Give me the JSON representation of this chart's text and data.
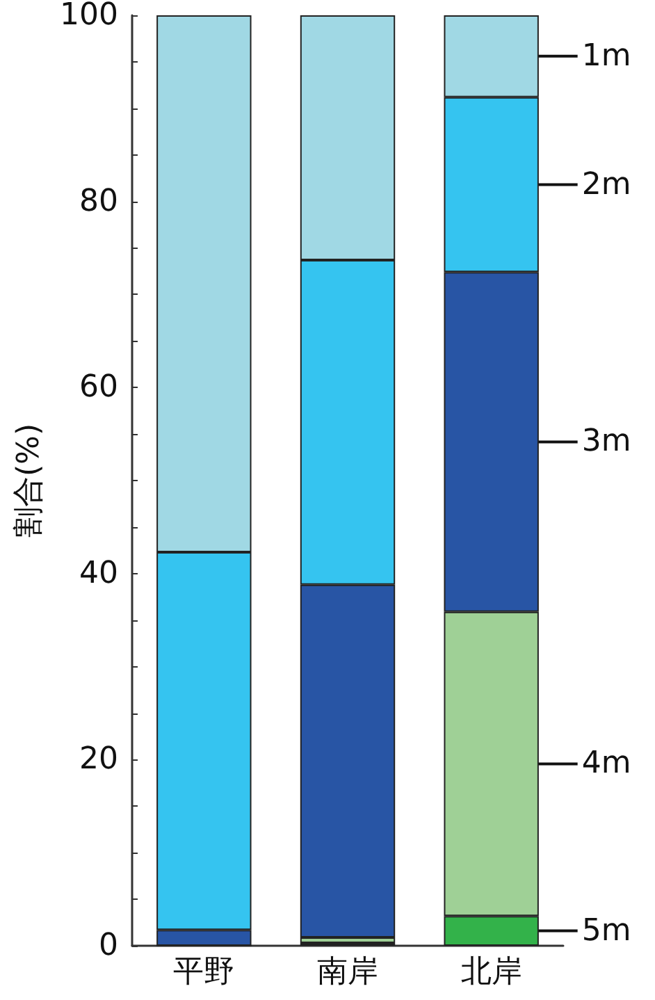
{
  "chart_data": {
    "type": "bar",
    "stacked": true,
    "ylabel": "割合(%)",
    "categories": [
      "平野",
      "南岸",
      "北岸"
    ],
    "series": [
      {
        "name": "5m",
        "color": "#33b24a",
        "values": [
          0,
          0.3,
          3.2
        ]
      },
      {
        "name": "4m",
        "color": "#9fd096",
        "values": [
          0,
          0.6,
          32.7
        ]
      },
      {
        "name": "3m",
        "color": "#2855a5",
        "values": [
          1.7,
          37.9,
          36.5
        ]
      },
      {
        "name": "2m",
        "color": "#35c4f0",
        "values": [
          40.6,
          34.9,
          18.8
        ]
      },
      {
        "name": "1m",
        "color": "#a0d8e4",
        "values": [
          57.7,
          26.3,
          8.8
        ]
      }
    ],
    "ylim": [
      0,
      100
    ],
    "yticks": [
      0,
      {
        "value": 5,
        "label": null
      },
      {
        "value": 10,
        "label": null
      },
      {
        "value": 15,
        "label": null
      },
      20,
      {
        "value": 25,
        "label": null
      },
      {
        "value": 30,
        "label": null
      },
      {
        "value": 35,
        "label": null
      },
      40,
      {
        "value": 45,
        "label": null
      },
      {
        "value": 50,
        "label": null
      },
      {
        "value": 55,
        "label": null
      },
      60,
      {
        "value": 65,
        "label": null
      },
      {
        "value": 70,
        "label": null
      },
      {
        "value": 75,
        "label": null
      },
      80,
      {
        "value": 85,
        "label": null
      },
      {
        "value": 90,
        "label": null
      },
      {
        "value": 95,
        "label": null
      },
      100
    ]
  }
}
